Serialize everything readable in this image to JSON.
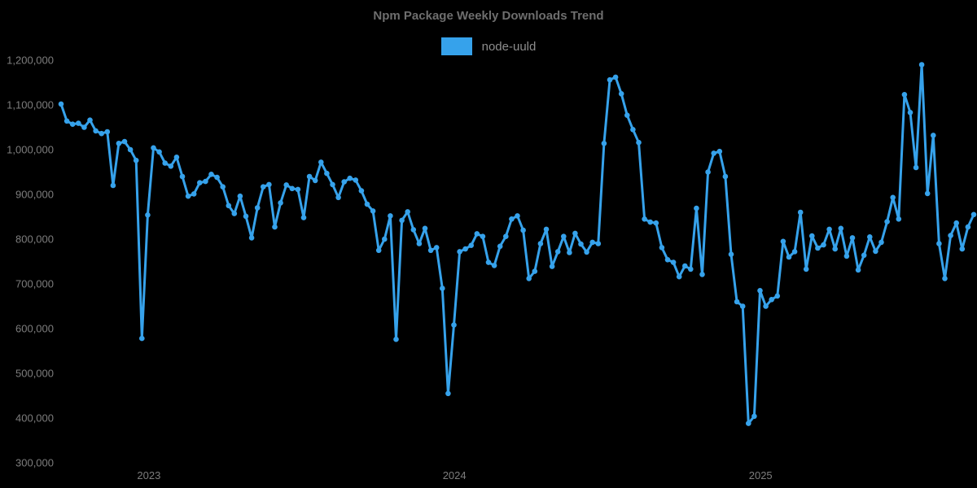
{
  "chart": {
    "title": "Npm Package Weekly Downloads Trend",
    "series_label": "node-uuld",
    "colors": {
      "background": "#000000",
      "line": "#36a2eb",
      "title_text": "#6e6e6e",
      "tick_text": "#7d7d7d",
      "legend_text": "#8d8d8d"
    }
  },
  "chart_data": {
    "type": "line",
    "title": "Npm Package Weekly Downloads Trend",
    "legend_position": "top",
    "grid": false,
    "xlabel": "",
    "ylabel": "",
    "x_unit": "week",
    "ylim": [
      300000,
      1200000
    ],
    "x_tick_labels": [
      "2023",
      "2024",
      "2025"
    ],
    "x_tick_indices": [
      15.2,
      68.1,
      121.1
    ],
    "y_ticks": [
      {
        "value": 300000,
        "label": "300,000"
      },
      {
        "value": 400000,
        "label": "400,000"
      },
      {
        "value": 500000,
        "label": "500,000"
      },
      {
        "value": 600000,
        "label": "600,000"
      },
      {
        "value": 700000,
        "label": "700,000"
      },
      {
        "value": 800000,
        "label": "800,000"
      },
      {
        "value": 900000,
        "label": "900,000"
      },
      {
        "value": 1000000,
        "label": "1,000,000"
      },
      {
        "value": 1100000,
        "label": "1,100,000"
      },
      {
        "value": 1200000,
        "label": "1,200,000"
      }
    ],
    "series": [
      {
        "name": "node-uuld",
        "color": "#36a2eb",
        "point_radius": 3.3,
        "line_width": 3,
        "values": [
          1102000,
          1064000,
          1057000,
          1059000,
          1050000,
          1066000,
          1042000,
          1036000,
          1040000,
          920000,
          1014000,
          1018000,
          1000000,
          976000,
          578000,
          854000,
          1004000,
          995000,
          970000,
          963000,
          983000,
          940000,
          896000,
          901000,
          926000,
          929000,
          945000,
          938000,
          917000,
          875000,
          857000,
          896000,
          851000,
          803000,
          870000,
          917000,
          922000,
          827000,
          881000,
          921000,
          913000,
          911000,
          848000,
          940000,
          931000,
          972000,
          947000,
          922000,
          893000,
          928000,
          936000,
          932000,
          908000,
          878000,
          863000,
          775000,
          800000,
          852000,
          576000,
          842000,
          861000,
          821000,
          790000,
          824000,
          775000,
          781000,
          690000,
          455000,
          608000,
          772000,
          778000,
          786000,
          812000,
          806000,
          748000,
          741000,
          784000,
          806000,
          845000,
          852000,
          820000,
          712000,
          728000,
          790000,
          822000,
          739000,
          772000,
          806000,
          770000,
          813000,
          789000,
          771000,
          793000,
          790000,
          1014000,
          1156000,
          1162000,
          1125000,
          1077000,
          1045000,
          1016000,
          845000,
          838000,
          836000,
          781000,
          754000,
          748000,
          716000,
          740000,
          733000,
          869000,
          721000,
          950000,
          992000,
          996000,
          940000,
          766000,
          660000,
          650000,
          388000,
          404000,
          685000,
          650000,
          665000,
          673000,
          795000,
          760000,
          772000,
          860000,
          733000,
          807000,
          780000,
          787000,
          822000,
          778000,
          824000,
          762000,
          803000,
          731000,
          764000,
          805000,
          773000,
          793000,
          839000,
          893000,
          845000,
          1123000,
          1083000,
          960000,
          1190000,
          902000,
          1032000,
          790000,
          712000,
          808000,
          836000,
          778000,
          827000,
          855000
        ]
      }
    ]
  }
}
